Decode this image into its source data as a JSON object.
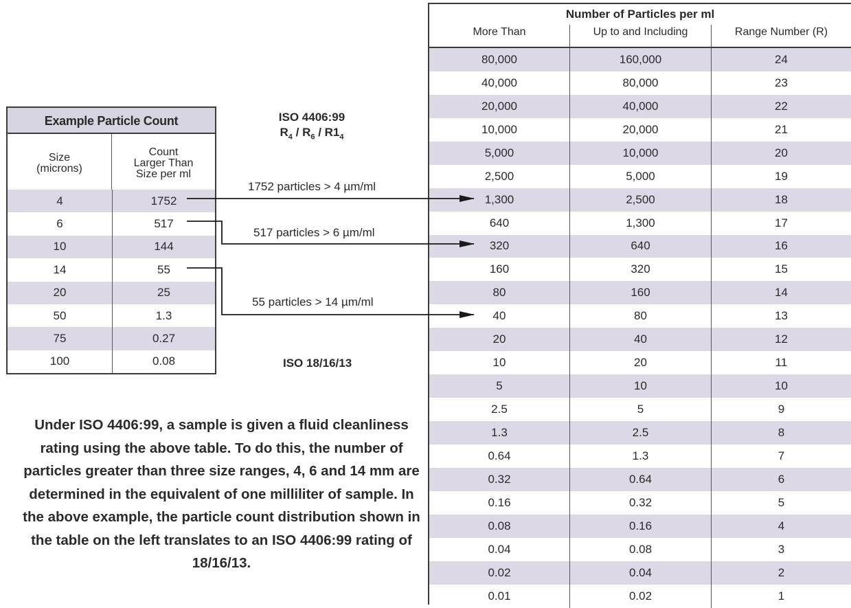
{
  "left_table": {
    "title": "Example Particle Count",
    "col1_header": [
      "Size",
      "(microns)"
    ],
    "col2_header": [
      "Count",
      "Larger Than",
      "Size per ml"
    ],
    "rows": [
      {
        "size": "4",
        "count": "1752"
      },
      {
        "size": "6",
        "count": "517"
      },
      {
        "size": "10",
        "count": "144"
      },
      {
        "size": "14",
        "count": "55"
      },
      {
        "size": "20",
        "count": "25"
      },
      {
        "size": "50",
        "count": "1.3"
      },
      {
        "size": "75",
        "count": "0.27"
      },
      {
        "size": "100",
        "count": "0.08"
      }
    ]
  },
  "right_table": {
    "title": "Number of Particles per ml",
    "headers": [
      "More Than",
      "Up to and Including",
      "Range Number (R)"
    ],
    "rows": [
      [
        "80,000",
        "160,000",
        "24"
      ],
      [
        "40,000",
        "80,000",
        "23"
      ],
      [
        "20,000",
        "40,000",
        "22"
      ],
      [
        "10,000",
        "20,000",
        "21"
      ],
      [
        "5,000",
        "10,000",
        "20"
      ],
      [
        "2,500",
        "5,000",
        "19"
      ],
      [
        "1,300",
        "2,500",
        "18"
      ],
      [
        "640",
        "1,300",
        "17"
      ],
      [
        "320",
        "640",
        "16"
      ],
      [
        "160",
        "320",
        "15"
      ],
      [
        "80",
        "160",
        "14"
      ],
      [
        "40",
        "80",
        "13"
      ],
      [
        "20",
        "40",
        "12"
      ],
      [
        "10",
        "20",
        "11"
      ],
      [
        "5",
        "10",
        "10"
      ],
      [
        "2.5",
        "5",
        "9"
      ],
      [
        "1.3",
        "2.5",
        "8"
      ],
      [
        "0.64",
        "1.3",
        "7"
      ],
      [
        "0.32",
        "0.64",
        "6"
      ],
      [
        "0.16",
        "0.32",
        "5"
      ],
      [
        "0.08",
        "0.16",
        "4"
      ],
      [
        "0.04",
        "0.08",
        "3"
      ],
      [
        "0.02",
        "0.04",
        "2"
      ],
      [
        "0.01",
        "0.02",
        "1"
      ]
    ]
  },
  "iso_code_heading": "ISO 4406:99",
  "iso_code_format": {
    "r": "R",
    "sub1": "4",
    "sub2": "6",
    "r3": "R1",
    "sub3": "4"
  },
  "arrow_labels": [
    "1752 particles > 4 µm/ml",
    "517 particles > 6 µm/ml",
    "55 particles > 14 µm/ml"
  ],
  "iso_result": "ISO 18/16/13",
  "description": "Under ISO 4406:99, a sample is given a fluid cleanliness rating using the above table. To do this, the number of particles greater than three size ranges, 4, 6 and 14 mm are determined in the equivalent of one milliliter of sample. In the above example, the particle count distribution shown in the table on the left translates to an ISO 4406:99 rating of 18/16/13.",
  "colors": {
    "shade": "#dcd8e6",
    "title_shade": "#d8d5e2",
    "border": "#3a3a3a"
  }
}
